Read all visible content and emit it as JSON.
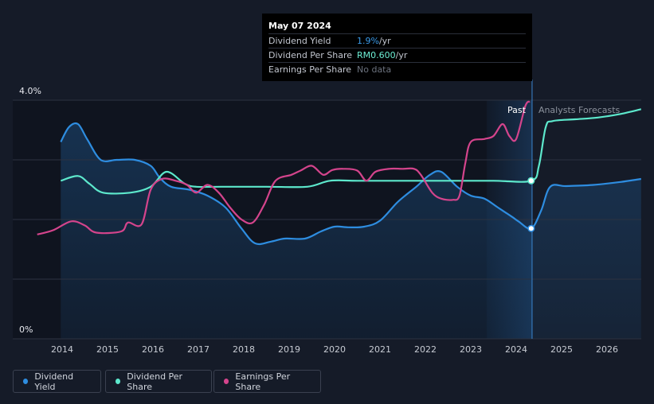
{
  "tooltip": {
    "date": "May 07 2024",
    "rows": [
      {
        "label": "Dividend Yield",
        "value": "1.9%",
        "unit": " /yr"
      },
      {
        "label": "Dividend Per Share",
        "value": "RM0.600",
        "unit": " /yr"
      },
      {
        "label": "Earnings Per Share",
        "value": "No data",
        "unit": ""
      }
    ]
  },
  "legend": [
    {
      "label": "Dividend Yield",
      "color": "#2e8de0"
    },
    {
      "label": "Dividend Per Share",
      "color": "#5de8cc"
    },
    {
      "label": "Earnings Per Share",
      "color": "#d4448c"
    }
  ],
  "chart_data": {
    "type": "line",
    "title": "",
    "ylim": [
      0,
      4
    ],
    "y_tick_labels": [
      "4.0%",
      "0%"
    ],
    "x_ticks": [
      "2014",
      "2015",
      "2016",
      "2017",
      "2018",
      "2019",
      "2020",
      "2021",
      "2022",
      "2023",
      "2024",
      "2025",
      "2026"
    ],
    "divider_labels": {
      "past": "Past",
      "forecast": "Analysts Forecasts"
    },
    "forecast_start": 2024.35,
    "series": [
      {
        "name": "Dividend Yield",
        "color": "#2e8de0",
        "unit": "%",
        "points": [
          [
            2013.97,
            3.3
          ],
          [
            2014.15,
            3.55
          ],
          [
            2014.35,
            3.6
          ],
          [
            2014.55,
            3.35
          ],
          [
            2014.85,
            3.0
          ],
          [
            2015.2,
            3.0
          ],
          [
            2015.6,
            3.0
          ],
          [
            2015.95,
            2.9
          ],
          [
            2016.15,
            2.7
          ],
          [
            2016.4,
            2.55
          ],
          [
            2016.8,
            2.5
          ],
          [
            2017.2,
            2.4
          ],
          [
            2017.6,
            2.2
          ],
          [
            2017.95,
            1.85
          ],
          [
            2018.25,
            1.6
          ],
          [
            2018.6,
            1.63
          ],
          [
            2018.9,
            1.68
          ],
          [
            2019.35,
            1.68
          ],
          [
            2019.7,
            1.8
          ],
          [
            2020.0,
            1.88
          ],
          [
            2020.3,
            1.87
          ],
          [
            2020.65,
            1.88
          ],
          [
            2021.0,
            1.98
          ],
          [
            2021.4,
            2.3
          ],
          [
            2021.8,
            2.55
          ],
          [
            2022.1,
            2.75
          ],
          [
            2022.35,
            2.8
          ],
          [
            2022.7,
            2.55
          ],
          [
            2023.0,
            2.4
          ],
          [
            2023.3,
            2.35
          ],
          [
            2023.6,
            2.2
          ],
          [
            2023.9,
            2.05
          ],
          [
            2024.05,
            1.97
          ],
          [
            2024.33,
            1.85
          ],
          [
            2024.55,
            2.15
          ],
          [
            2024.75,
            2.55
          ],
          [
            2025.1,
            2.56
          ],
          [
            2025.7,
            2.58
          ],
          [
            2026.3,
            2.63
          ],
          [
            2026.75,
            2.68
          ]
        ]
      },
      {
        "name": "Dividend Per Share",
        "color": "#5de8cc",
        "unit": "RM",
        "points": [
          [
            2013.97,
            2.65
          ],
          [
            2014.35,
            2.73
          ],
          [
            2014.6,
            2.6
          ],
          [
            2014.9,
            2.45
          ],
          [
            2015.5,
            2.45
          ],
          [
            2015.95,
            2.55
          ],
          [
            2016.3,
            2.8
          ],
          [
            2016.7,
            2.6
          ],
          [
            2016.95,
            2.55
          ],
          [
            2017.5,
            2.55
          ],
          [
            2018.5,
            2.55
          ],
          [
            2019.4,
            2.55
          ],
          [
            2019.9,
            2.65
          ],
          [
            2020.5,
            2.65
          ],
          [
            2021.5,
            2.65
          ],
          [
            2022.5,
            2.65
          ],
          [
            2023.5,
            2.65
          ],
          [
            2024.33,
            2.65
          ],
          [
            2024.5,
            2.9
          ],
          [
            2024.65,
            3.55
          ],
          [
            2024.8,
            3.65
          ],
          [
            2025.3,
            3.68
          ],
          [
            2025.8,
            3.71
          ],
          [
            2026.3,
            3.77
          ],
          [
            2026.75,
            3.85
          ]
        ]
      },
      {
        "name": "Earnings Per Share",
        "color": "#d4448c",
        "unit": "RM",
        "points": [
          [
            2013.45,
            1.75
          ],
          [
            2013.8,
            1.82
          ],
          [
            2014.2,
            1.97
          ],
          [
            2014.5,
            1.9
          ],
          [
            2014.75,
            1.78
          ],
          [
            2015.3,
            1.8
          ],
          [
            2015.45,
            1.95
          ],
          [
            2015.75,
            1.92
          ],
          [
            2015.95,
            2.5
          ],
          [
            2016.2,
            2.68
          ],
          [
            2016.5,
            2.65
          ],
          [
            2016.75,
            2.58
          ],
          [
            2016.95,
            2.45
          ],
          [
            2017.2,
            2.58
          ],
          [
            2017.45,
            2.45
          ],
          [
            2017.7,
            2.2
          ],
          [
            2017.95,
            2.0
          ],
          [
            2018.2,
            1.95
          ],
          [
            2018.45,
            2.25
          ],
          [
            2018.7,
            2.65
          ],
          [
            2019.05,
            2.75
          ],
          [
            2019.25,
            2.82
          ],
          [
            2019.5,
            2.9
          ],
          [
            2019.75,
            2.75
          ],
          [
            2019.95,
            2.83
          ],
          [
            2020.2,
            2.85
          ],
          [
            2020.5,
            2.82
          ],
          [
            2020.7,
            2.65
          ],
          [
            2020.9,
            2.8
          ],
          [
            2021.2,
            2.85
          ],
          [
            2021.5,
            2.85
          ],
          [
            2021.75,
            2.85
          ],
          [
            2021.9,
            2.75
          ],
          [
            2022.15,
            2.45
          ],
          [
            2022.35,
            2.35
          ],
          [
            2022.6,
            2.33
          ],
          [
            2022.75,
            2.4
          ],
          [
            2022.88,
            2.95
          ],
          [
            2023.0,
            3.3
          ],
          [
            2023.3,
            3.35
          ],
          [
            2023.5,
            3.4
          ],
          [
            2023.7,
            3.6
          ],
          [
            2023.85,
            3.4
          ],
          [
            2024.0,
            3.35
          ],
          [
            2024.2,
            3.9
          ],
          [
            2024.3,
            3.98
          ]
        ]
      }
    ],
    "markers": [
      {
        "series": "Dividend Yield",
        "x": 2024.33,
        "y": 1.85
      },
      {
        "series": "Dividend Per Share",
        "x": 2024.33,
        "y": 2.65
      }
    ]
  }
}
